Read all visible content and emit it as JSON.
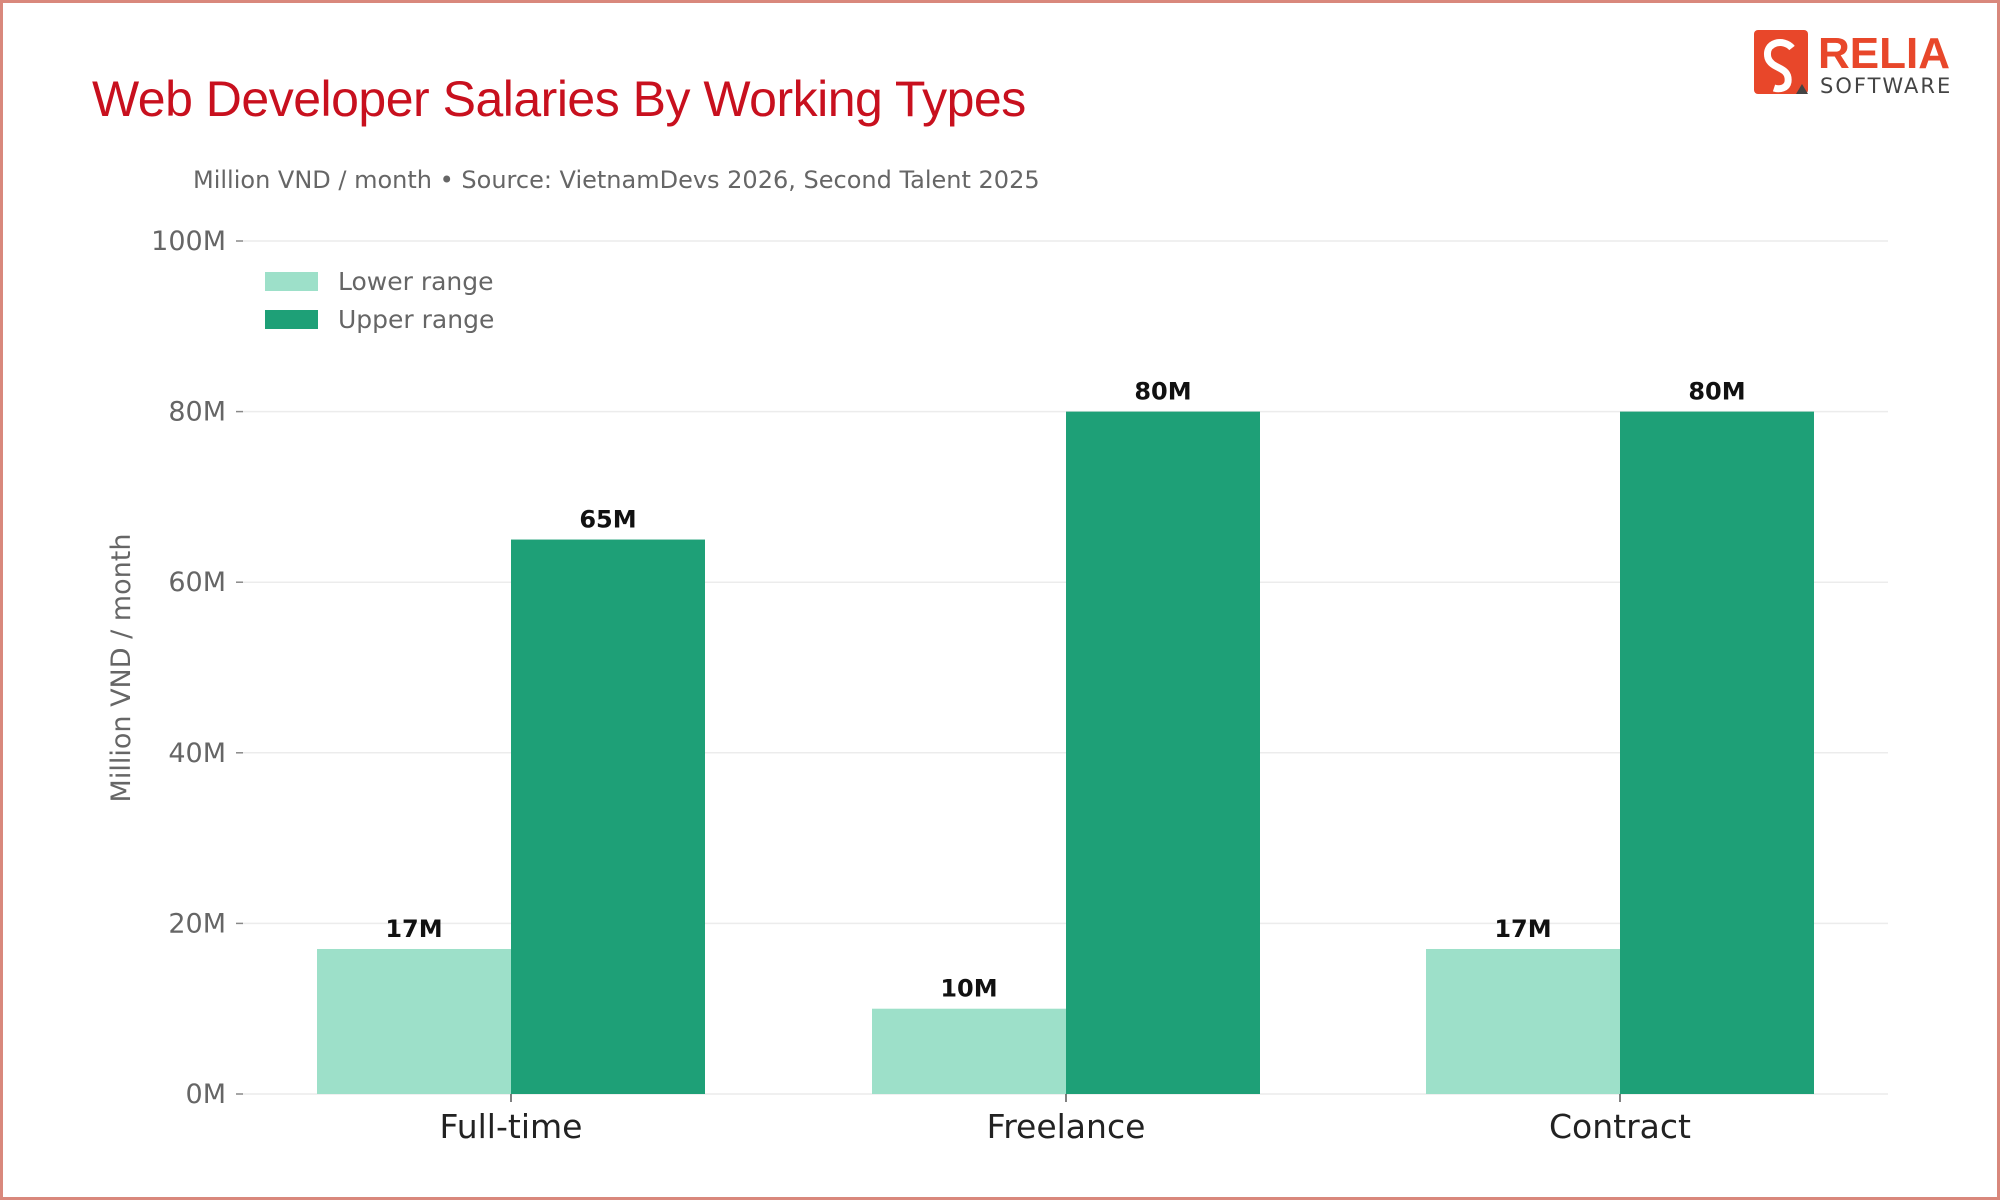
{
  "title": "Web Developer Salaries By Working Types",
  "subtitle": "Million VND / month  •  Source: VietnamDevs 2026, Second Talent 2025",
  "logo": {
    "text_main": "RELIA",
    "text_sub": "SOFTWARE",
    "color": "#e8472a"
  },
  "chart_data": {
    "type": "bar",
    "categories": [
      "Full-time",
      "Freelance",
      "Contract"
    ],
    "series": [
      {
        "name": "Lower range",
        "values": [
          17,
          10,
          17
        ],
        "labels": [
          "17M",
          "10M",
          "17M"
        ],
        "color": "#9de0c9"
      },
      {
        "name": "Upper range",
        "values": [
          65,
          80,
          80
        ],
        "labels": [
          "65M",
          "80M",
          "80M"
        ],
        "color": "#1ea077"
      }
    ],
    "ylabel": "Million VND / month",
    "xlabel": "",
    "ylim": [
      0,
      100
    ],
    "yticks": [
      0,
      20,
      40,
      60,
      80,
      100
    ],
    "ytick_labels": [
      "0M",
      "20M",
      "40M",
      "60M",
      "80M",
      "100M"
    ],
    "grid": true,
    "legend": "top-left"
  }
}
